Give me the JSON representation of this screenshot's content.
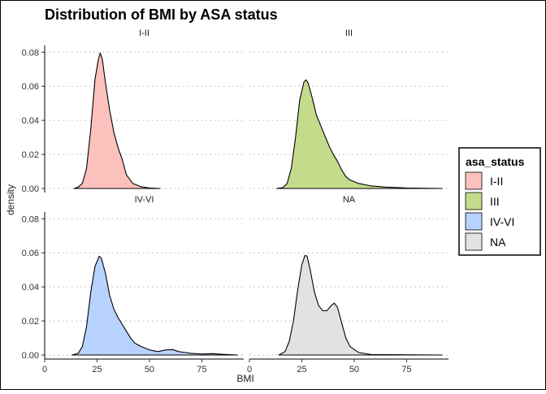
{
  "chart_data": {
    "type": "area",
    "title": "Distribution of BMI by ASA status",
    "xlabel": "BMI",
    "ylabel": "density",
    "xlim": [
      0,
      95
    ],
    "ylim": [
      0,
      0.083
    ],
    "x_ticks": [
      0,
      25,
      50,
      75
    ],
    "x_tick_labels": [
      "0",
      "25",
      "50",
      "75"
    ],
    "y_ticks": [
      0,
      0.02,
      0.04,
      0.06,
      0.08
    ],
    "y_tick_labels": [
      "0.00",
      "0.02",
      "0.04",
      "0.06",
      "0.08"
    ],
    "grid": "horizontal dotted",
    "legend": {
      "title": "asa_status",
      "placement": "right",
      "items": [
        "I-II",
        "III",
        "IV-VI",
        "NA"
      ]
    },
    "panels": [
      "I-II",
      "III",
      "IV-VI",
      "NA"
    ],
    "series": [
      {
        "name": "I-II",
        "color": "#F8766D",
        "points": [
          [
            14,
            0
          ],
          [
            16,
            0.0008
          ],
          [
            18,
            0.003
          ],
          [
            20,
            0.012
          ],
          [
            22,
            0.035
          ],
          [
            24,
            0.064
          ],
          [
            25.5,
            0.075
          ],
          [
            26.5,
            0.0795
          ],
          [
            27.5,
            0.076
          ],
          [
            29,
            0.062
          ],
          [
            31,
            0.046
          ],
          [
            33,
            0.033
          ],
          [
            35,
            0.024
          ],
          [
            37,
            0.017
          ],
          [
            39,
            0.008
          ],
          [
            42,
            0.003
          ],
          [
            46,
            0.001
          ],
          [
            50,
            0.0003
          ],
          [
            55,
            0
          ]
        ]
      },
      {
        "name": "III",
        "color": "#7CAE00",
        "points": [
          [
            13,
            0
          ],
          [
            16,
            0.0005
          ],
          [
            18,
            0.003
          ],
          [
            20,
            0.012
          ],
          [
            22,
            0.03
          ],
          [
            24,
            0.052
          ],
          [
            26,
            0.0625
          ],
          [
            27,
            0.0638
          ],
          [
            28,
            0.062
          ],
          [
            30,
            0.053
          ],
          [
            32,
            0.043
          ],
          [
            34,
            0.037
          ],
          [
            36,
            0.031
          ],
          [
            38,
            0.025
          ],
          [
            40,
            0.02
          ],
          [
            42,
            0.016
          ],
          [
            44,
            0.011
          ],
          [
            46,
            0.007
          ],
          [
            48,
            0.005
          ],
          [
            52,
            0.003
          ],
          [
            58,
            0.0015
          ],
          [
            65,
            0.0008
          ],
          [
            75,
            0.0003
          ],
          [
            85,
            0.0001
          ],
          [
            92,
            0
          ]
        ]
      },
      {
        "name": "IV-VI",
        "color": "#619CFF",
        "points": [
          [
            13,
            0
          ],
          [
            16,
            0.001
          ],
          [
            18,
            0.005
          ],
          [
            20,
            0.017
          ],
          [
            22,
            0.037
          ],
          [
            24,
            0.052
          ],
          [
            26,
            0.058
          ],
          [
            27,
            0.057
          ],
          [
            29,
            0.048
          ],
          [
            31,
            0.035
          ],
          [
            33,
            0.027
          ],
          [
            35,
            0.022
          ],
          [
            37,
            0.018
          ],
          [
            39,
            0.014
          ],
          [
            41,
            0.01
          ],
          [
            43,
            0.007
          ],
          [
            46,
            0.005
          ],
          [
            50,
            0.003
          ],
          [
            54,
            0.002
          ],
          [
            58,
            0.003
          ],
          [
            61,
            0.0032
          ],
          [
            64,
            0.002
          ],
          [
            67,
            0.0015
          ],
          [
            70,
            0.001
          ],
          [
            75,
            0.0006
          ],
          [
            80,
            0.0008
          ],
          [
            85,
            0.0004
          ],
          [
            90,
            0.0001
          ],
          [
            92,
            0
          ]
        ]
      },
      {
        "name": "NA",
        "color": "#BEBEBE",
        "points": [
          [
            14,
            0
          ],
          [
            17,
            0.002
          ],
          [
            19,
            0.008
          ],
          [
            21,
            0.02
          ],
          [
            23,
            0.038
          ],
          [
            25,
            0.053
          ],
          [
            26.5,
            0.0585
          ],
          [
            27.5,
            0.058
          ],
          [
            29,
            0.05
          ],
          [
            31,
            0.037
          ],
          [
            33,
            0.029
          ],
          [
            35,
            0.026
          ],
          [
            37,
            0.026
          ],
          [
            39,
            0.029
          ],
          [
            40.5,
            0.0305
          ],
          [
            42,
            0.028
          ],
          [
            44,
            0.019
          ],
          [
            46,
            0.01
          ],
          [
            48,
            0.005
          ],
          [
            52,
            0.0015
          ],
          [
            58,
            0.0003
          ],
          [
            92,
            0
          ]
        ]
      }
    ]
  }
}
